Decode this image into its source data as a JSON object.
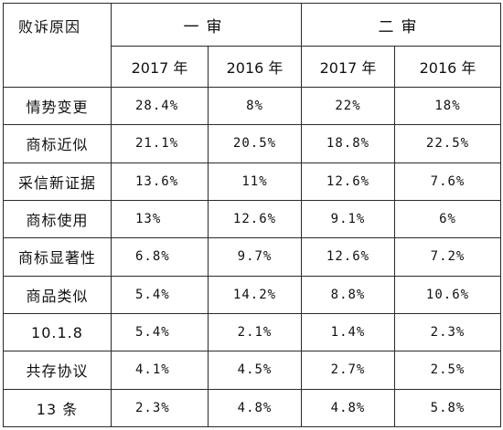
{
  "table": {
    "corner_label": "败诉原因",
    "groups": [
      "一审",
      "二审"
    ],
    "years": [
      "2017 年",
      "2016 年",
      "2017 年",
      "2016 年"
    ],
    "rows": [
      {
        "reason": "情势变更",
        "values": [
          "28.4%",
          "8%",
          "22%",
          "18%"
        ]
      },
      {
        "reason": "商标近似",
        "values": [
          "21.1%",
          "20.5%",
          "18.8%",
          "22.5%"
        ]
      },
      {
        "reason": "采信新证据",
        "values": [
          "13.6%",
          "11%",
          "12.6%",
          "7.6%"
        ]
      },
      {
        "reason": "商标使用",
        "values": [
          "13%",
          "12.6%",
          "9.1%",
          "6%"
        ]
      },
      {
        "reason": "商标显著性",
        "values": [
          "6.8%",
          "9.7%",
          "12.6%",
          "7.2%"
        ]
      },
      {
        "reason": "商品类似",
        "values": [
          "5.4%",
          "14.2%",
          "8.8%",
          "10.6%"
        ]
      },
      {
        "reason": "10.1.8",
        "values": [
          "5.4%",
          "2.1%",
          "1.4%",
          "2.3%"
        ]
      },
      {
        "reason": "共存协议",
        "values": [
          "4.1%",
          "4.5%",
          "2.7%",
          "2.5%"
        ]
      },
      {
        "reason": "13 条",
        "values": [
          "2.3%",
          "4.8%",
          "4.8%",
          "5.8%"
        ]
      }
    ]
  }
}
